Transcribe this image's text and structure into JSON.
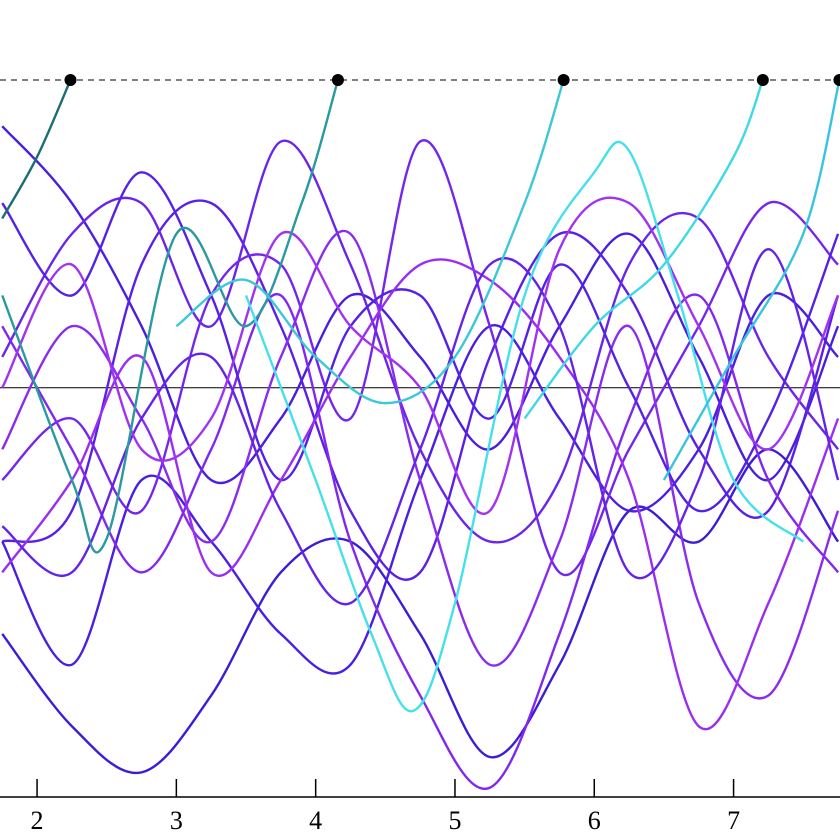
{
  "chart_data": {
    "type": "line",
    "x": [
      1.75,
      2.25,
      2.75,
      3.25,
      3.75,
      4.25,
      4.75,
      5.25,
      5.75,
      6.25,
      6.75,
      7.25,
      7.75
    ],
    "xlim": [
      1.734,
      7.764
    ],
    "ylim": [
      -1.33,
      1.26
    ],
    "xticks": [
      2,
      3,
      4,
      5,
      6,
      7
    ],
    "hlines": [
      {
        "value": 0,
        "style": "solid"
      },
      {
        "value": 1,
        "style": "dashed"
      }
    ],
    "series": [
      {
        "color": "#4a1ee0",
        "values": [
          0.85,
          0.6,
          0.2,
          -0.3,
          -0.1,
          0.3,
          0.1,
          -0.2,
          0.2,
          0.5,
          0.1,
          -0.3,
          0.2
        ]
      },
      {
        "color": "#5a20e6",
        "values": [
          -0.5,
          -0.4,
          0.4,
          0.6,
          0.2,
          -0.4,
          -0.6,
          0.1,
          0.5,
          0.3,
          -0.2,
          -0.4,
          0.3
        ]
      },
      {
        "color": "#3d1cd8",
        "values": [
          -0.8,
          -1.1,
          -1.25,
          -1.0,
          -0.6,
          -0.5,
          -0.8,
          -1.2,
          -0.9,
          -0.4,
          -0.5,
          -0.2,
          -0.5
        ]
      },
      {
        "color": "#4b1fe2",
        "values": [
          -0.5,
          -0.9,
          -0.3,
          -0.5,
          -0.8,
          -0.9,
          -0.3,
          0.2,
          -0.1,
          -0.4,
          -0.2,
          0.3,
          0.1
        ]
      },
      {
        "color": "#6a25ea",
        "values": [
          0.1,
          0.5,
          0.6,
          0.2,
          0.8,
          0.4,
          -0.2,
          -0.5,
          -0.3,
          0.4,
          0.55,
          0.1,
          -0.2
        ]
      },
      {
        "color": "#7426ec",
        "values": [
          -0.3,
          -0.1,
          -0.4,
          0.3,
          0.4,
          -0.1,
          0.8,
          0.2,
          -0.6,
          -0.2,
          0.2,
          0.6,
          0.4
        ]
      },
      {
        "color": "#8a2cee",
        "values": [
          -0.2,
          0.2,
          -0.1,
          -0.5,
          0.1,
          0.5,
          -0.3,
          -0.9,
          -0.5,
          0.2,
          -0.7,
          -1.0,
          -0.4
        ]
      },
      {
        "color": "#8128ee",
        "values": [
          0.2,
          -0.2,
          -0.6,
          -0.2,
          0.3,
          -0.5,
          -1.0,
          -1.3,
          -0.8,
          -0.1,
          0.3,
          -0.3,
          -0.6
        ]
      },
      {
        "color": "#5422e6",
        "values": [
          0.6,
          0.3,
          0.7,
          0.3,
          -0.3,
          0.2,
          0.3,
          -0.1,
          0.4,
          0.0,
          -0.4,
          -0.1,
          0.5
        ]
      },
      {
        "color": "#9a2ef0",
        "values": [
          -0.6,
          -0.3,
          0.1,
          -0.6,
          -0.3,
          0.1,
          0.4,
          0.35,
          0.1,
          -0.3,
          -1.1,
          -0.7,
          -0.1
        ]
      },
      {
        "color": "#6423e8",
        "values": [
          -0.45,
          -0.6,
          -0.1,
          0.1,
          -0.4,
          -0.7,
          -0.2,
          0.4,
          0.2,
          -0.6,
          -0.3,
          0.45,
          -0.3
        ]
      },
      {
        "color": "#a032f2",
        "values": [
          0.0,
          0.4,
          -0.2,
          -0.1,
          0.5,
          0.2,
          0.0,
          -0.4,
          0.45,
          0.6,
          0.2,
          -0.2,
          0.3
        ]
      },
      {
        "color": "#1d6e73",
        "marker": "end",
        "x": [
          1.75,
          2.0,
          2.24
        ],
        "values": [
          0.55,
          0.75,
          1
        ]
      },
      {
        "color": "#2a9aa0",
        "marker": "end",
        "x": [
          1.75,
          2.25,
          2.5,
          3.0,
          3.5,
          3.9,
          4.16
        ],
        "values": [
          0.3,
          -0.3,
          -0.49,
          0.5,
          0.2,
          0.6,
          1
        ]
      },
      {
        "color": "#3cc8d8",
        "marker": "end",
        "x": [
          3.0,
          3.5,
          4.0,
          4.5,
          5.0,
          5.5,
          5.78
        ],
        "values": [
          0.2,
          0.35,
          0.1,
          -0.05,
          0.1,
          0.6,
          1
        ]
      },
      {
        "color": "#45e0ea",
        "x": [
          3.5,
          4.0,
          4.4,
          4.7,
          5.0,
          5.5,
          6.0,
          6.25,
          6.6,
          7.0,
          7.5
        ],
        "values": [
          0.3,
          -0.3,
          -0.8,
          -1.05,
          -0.7,
          0.3,
          0.7,
          0.77,
          0.3,
          -0.3,
          -0.5
        ]
      },
      {
        "color": "#40d8e6",
        "marker": "end",
        "x": [
          5.5,
          6.0,
          6.5,
          7.0,
          7.21
        ],
        "values": [
          -0.1,
          0.2,
          0.4,
          0.75,
          1
        ]
      },
      {
        "color": "#38c4e0",
        "marker": "end",
        "x": [
          6.5,
          7.0,
          7.5,
          7.76
        ],
        "values": [
          -0.3,
          0.1,
          0.5,
          1
        ]
      }
    ]
  }
}
